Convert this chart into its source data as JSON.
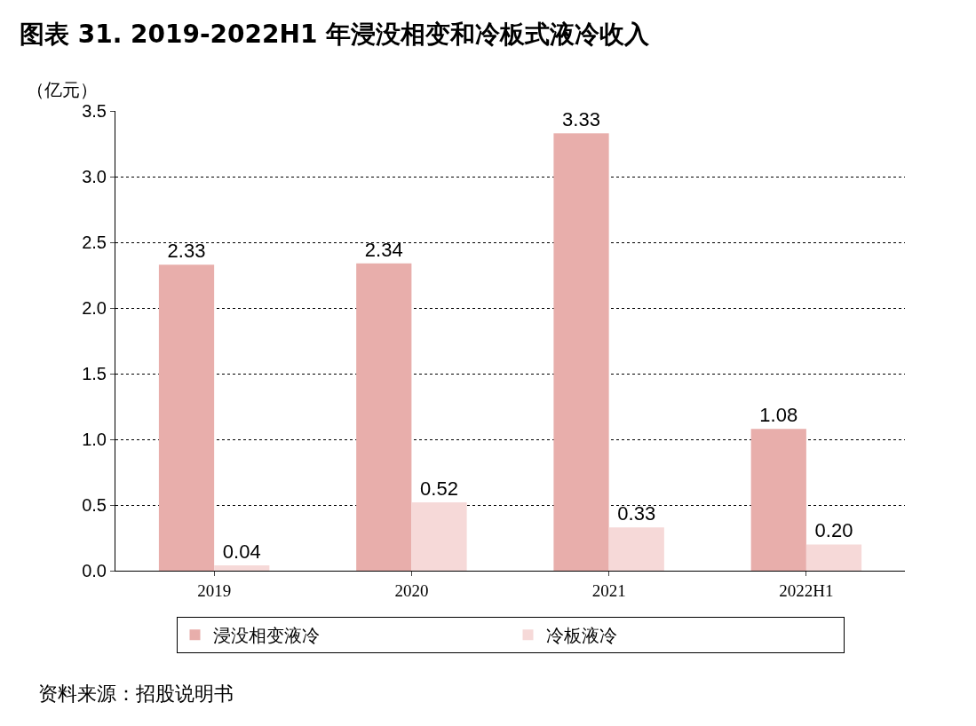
{
  "chart_data": {
    "type": "bar",
    "title": "图表 31. 2019-2022H1 年浸没相变和冷板式液冷收入",
    "ylabel": "（亿元）",
    "categories": [
      "2019",
      "2020",
      "2021",
      "2022H1"
    ],
    "series": [
      {
        "name": "浸没相变液冷",
        "color": "#e8aeab",
        "values": [
          2.33,
          2.34,
          3.33,
          1.08
        ],
        "value_labels": [
          "2.33",
          "2.34",
          "3.33",
          "1.08"
        ]
      },
      {
        "name": "冷板液冷",
        "color": "#f6d9d8",
        "values": [
          0.04,
          0.52,
          0.33,
          0.2
        ],
        "value_labels": [
          "0.04",
          "0.52",
          "0.33",
          "0.20"
        ]
      }
    ],
    "ylim": [
      0,
      3.5
    ],
    "yticks": [
      {
        "value": 0,
        "label": "0.0"
      },
      {
        "value": 0.5,
        "label": "0.5"
      },
      {
        "value": 1,
        "label": "1.0"
      },
      {
        "value": 1.5,
        "label": "1.5"
      },
      {
        "value": 2,
        "label": "2.0"
      },
      {
        "value": 2.5,
        "label": "2.5"
      },
      {
        "value": 3,
        "label": "3.0"
      },
      {
        "value": 3.5,
        "label": "3.5"
      }
    ],
    "grid": "y",
    "legend": "bottom",
    "annotations": [
      "资料来源：招股说明书"
    ]
  }
}
